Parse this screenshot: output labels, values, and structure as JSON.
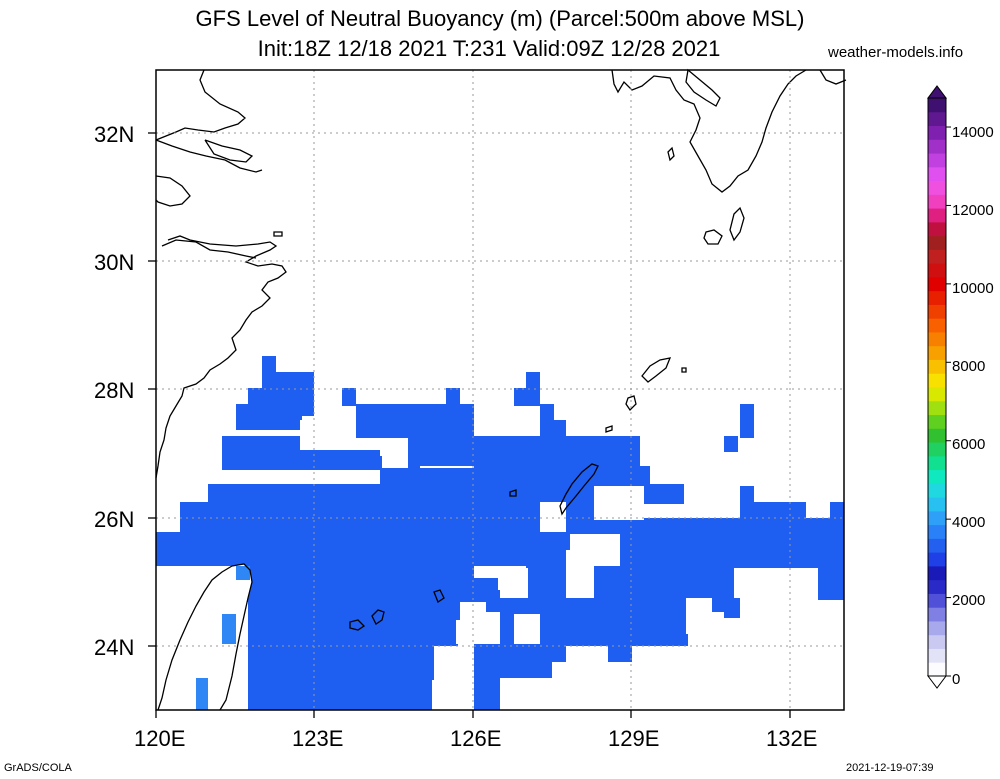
{
  "title": {
    "line1": "GFS Level of Neutral Buoyancy (m) (Parcel:500m above MSL)",
    "line2": "Init:18Z 12/18 2021 T:231 Valid:09Z 12/28 2021"
  },
  "source_label": "weather-models.info",
  "footer": {
    "left": "GrADS/COLA",
    "right": "2021-12-19-07:39"
  },
  "map": {
    "lat_labels": [
      "32N",
      "30N",
      "28N",
      "26N",
      "24N"
    ],
    "lon_labels": [
      "120E",
      "123E",
      "126E",
      "129E",
      "132E"
    ],
    "field_color": "#1e5ef0",
    "field_color_light": "#2f86f5",
    "coast_color": "#000000",
    "grid_color": "#9a9a9a"
  },
  "colorbar": {
    "labels": [
      "0",
      "2000",
      "4000",
      "6000",
      "8000",
      "10000",
      "12000",
      "14000"
    ],
    "colors": [
      "#fcfcff",
      "#e3e3f8",
      "#c9c9f2",
      "#a8a8ec",
      "#8080e4",
      "#5050d8",
      "#2a2ac8",
      "#1a1ab8",
      "#1e40e6",
      "#2460f0",
      "#2a80f6",
      "#2ea0f8",
      "#28c0f0",
      "#20d8e0",
      "#10e8c0",
      "#10e090",
      "#20d060",
      "#30c030",
      "#60d020",
      "#a0e010",
      "#d8e800",
      "#f8e000",
      "#f8c000",
      "#f8a000",
      "#f88000",
      "#f86000",
      "#f04000",
      "#e82000",
      "#e00000",
      "#d01010",
      "#c02020",
      "#a02020",
      "#c01040",
      "#e02080",
      "#f040c0",
      "#f050e0",
      "#e050f0",
      "#c040e0",
      "#a030c8",
      "#8020b0",
      "#601890",
      "#401070"
    ]
  }
}
